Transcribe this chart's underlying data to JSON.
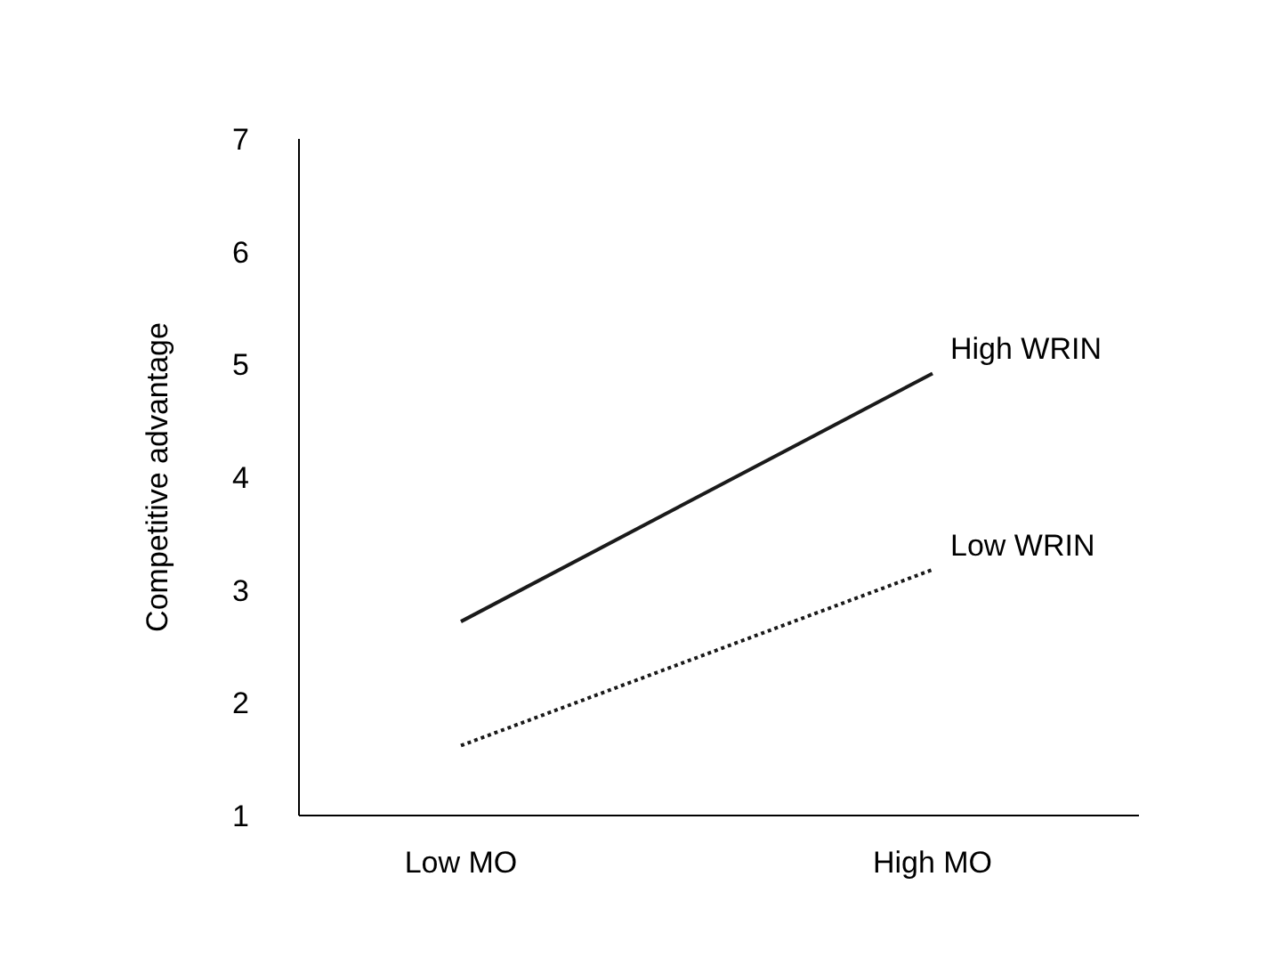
{
  "chart_data": {
    "type": "line",
    "ylabel": "Competitive advantage",
    "categories": [
      "Low MO",
      "High MO"
    ],
    "series": [
      {
        "name": "High WRIN",
        "color": "#1a1a1a",
        "values": [
          2.72,
          4.92
        ],
        "line_style": "solid"
      },
      {
        "name": "Low WRIN",
        "color": "#1a1a1a",
        "values": [
          1.62,
          3.18
        ],
        "line_style": "dotted"
      }
    ],
    "ylim": [
      1,
      7
    ],
    "yticks": [
      1,
      2,
      3,
      4,
      5,
      6,
      7
    ],
    "grid": false,
    "legend": false,
    "marker": "none"
  }
}
